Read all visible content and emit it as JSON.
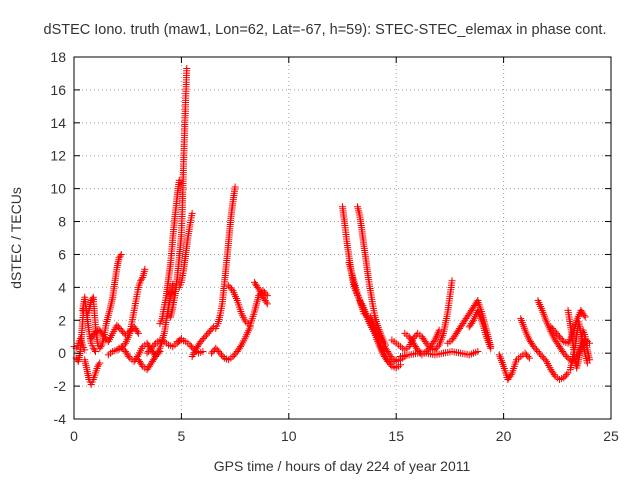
{
  "chart_data": {
    "type": "scatter",
    "title": "dSTEC Iono. truth (maw1, Lon=62, Lat=-67, h=59): STEC-STEC_elemax in phase cont.",
    "xlabel": "GPS time / hours of day 224 of year 2011",
    "ylabel": "dSTEC  / TECUs",
    "xlim": [
      0,
      25
    ],
    "ylim": [
      -4,
      18
    ],
    "x_ticks": [
      0,
      5,
      10,
      15,
      20,
      25
    ],
    "y_ticks": [
      -4,
      -2,
      0,
      2,
      4,
      6,
      8,
      10,
      12,
      14,
      16,
      18
    ],
    "grid": true,
    "marker": "plus",
    "color": "#ff0000",
    "tracks": [
      {
        "x": [
          0.0,
          0.1,
          0.2,
          0.3,
          0.4,
          0.5
        ],
        "y": [
          0.4,
          0.3,
          0.6,
          0.9,
          0.5,
          0.2
        ]
      },
      {
        "x": [
          0.1,
          0.2,
          0.3,
          0.35,
          0.4,
          0.45
        ],
        "y": [
          -0.3,
          -0.5,
          0.1,
          1.0,
          1.9,
          2.7
        ]
      },
      {
        "x": [
          0.4,
          0.5,
          0.6,
          0.7,
          0.8,
          0.9,
          1.0
        ],
        "y": [
          2.6,
          3.4,
          2.3,
          1.3,
          0.6,
          0.3,
          0.1
        ]
      },
      {
        "x": [
          0.5,
          0.6,
          0.7,
          0.8,
          0.9,
          1.0,
          1.1,
          1.2
        ],
        "y": [
          -0.4,
          -1.0,
          -1.6,
          -1.9,
          -1.6,
          -1.2,
          -0.8,
          -0.6
        ]
      },
      {
        "x": [
          0.6,
          0.7,
          0.8,
          0.9,
          1.0,
          1.1,
          1.2,
          1.3,
          1.4,
          1.5,
          1.6,
          1.7,
          1.8,
          1.9,
          2.0,
          2.1,
          2.2
        ],
        "y": [
          2.3,
          2.6,
          3.2,
          3.4,
          1.6,
          0.6,
          0.3,
          0.5,
          1.0,
          1.8,
          2.3,
          2.8,
          3.4,
          4.3,
          5.2,
          5.8,
          6.0
        ]
      },
      {
        "x": [
          0.8,
          1.0,
          1.2,
          1.4,
          1.6,
          1.8,
          2.0,
          2.2,
          2.4,
          2.6,
          2.8,
          3.0
        ],
        "y": [
          0.9,
          1.3,
          1.4,
          1.0,
          0.7,
          1.2,
          1.7,
          1.4,
          1.1,
          1.3,
          1.6,
          1.2
        ]
      },
      {
        "x": [
          1.6,
          1.8,
          2.0,
          2.2,
          2.4,
          2.6,
          2.7,
          2.8,
          2.9,
          3.0,
          3.1,
          3.2,
          3.3
        ],
        "y": [
          -0.1,
          0.1,
          0.2,
          0.3,
          0.6,
          1.2,
          1.9,
          2.6,
          3.3,
          4.0,
          4.4,
          4.6,
          5.1
        ]
      },
      {
        "x": [
          2.0,
          2.2,
          2.4,
          2.6,
          2.8,
          3.0,
          3.2,
          3.4,
          3.6,
          3.8,
          4.0
        ],
        "y": [
          0.2,
          0.4,
          0.1,
          -0.3,
          -0.5,
          -0.1,
          0.4,
          0.6,
          0.2,
          -0.2,
          0.1
        ]
      },
      {
        "x": [
          3.0,
          3.2,
          3.4,
          3.6,
          3.8,
          4.0,
          4.2,
          4.4,
          4.6
        ],
        "y": [
          -0.4,
          -0.8,
          -1.0,
          -0.6,
          -0.2,
          0.3,
          1.2,
          2.8,
          4.2
        ]
      },
      {
        "x": [
          3.4,
          3.6,
          3.8,
          4.0,
          4.2,
          4.4,
          4.6,
          4.8,
          5.0
        ],
        "y": [
          0.0,
          0.3,
          0.6,
          0.8,
          0.7,
          0.5,
          0.4,
          0.6,
          0.9
        ]
      },
      {
        "x": [
          4.0,
          4.1,
          4.2,
          4.3,
          4.4,
          4.5,
          4.55,
          4.6,
          4.7,
          4.8,
          4.9
        ],
        "y": [
          1.8,
          2.1,
          2.8,
          3.5,
          4.5,
          5.5,
          6.2,
          7.0,
          8.3,
          9.5,
          10.5
        ]
      },
      {
        "x": [
          4.5,
          4.6,
          4.7,
          4.8,
          4.9,
          5.0,
          5.05,
          5.1,
          5.15,
          5.2,
          5.25
        ],
        "y": [
          2.2,
          2.8,
          3.5,
          4.5,
          5.8,
          7.2,
          9.0,
          11.5,
          13.5,
          15.5,
          17.3
        ]
      },
      {
        "x": [
          4.9,
          5.0,
          5.1,
          5.2,
          5.3,
          5.4,
          5.5
        ],
        "y": [
          4.0,
          4.3,
          5.0,
          6.0,
          7.0,
          7.8,
          8.5
        ]
      },
      {
        "x": [
          4.8,
          5.0,
          5.2,
          5.4,
          5.6,
          5.8,
          6.0
        ],
        "y": [
          0.7,
          0.8,
          0.7,
          0.5,
          0.2,
          0.0,
          0.1
        ]
      },
      {
        "x": [
          5.5,
          5.7,
          5.9,
          6.1,
          6.3,
          6.5
        ],
        "y": [
          -0.2,
          0.3,
          0.7,
          1.0,
          1.3,
          1.6
        ]
      },
      {
        "x": [
          6.6,
          6.7,
          6.8,
          6.9,
          7.0,
          7.1,
          7.2,
          7.3,
          7.4,
          7.5
        ],
        "y": [
          1.5,
          1.8,
          2.3,
          3.0,
          4.2,
          5.5,
          6.8,
          8.2,
          9.2,
          10.1
        ]
      },
      {
        "x": [
          6.4,
          6.6,
          6.8,
          7.0,
          7.2,
          7.4,
          7.6,
          7.8,
          8.0,
          8.2
        ],
        "y": [
          0.0,
          0.3,
          0.0,
          -0.3,
          -0.4,
          -0.2,
          0.1,
          0.5,
          1.0,
          1.6
        ]
      },
      {
        "x": [
          7.2,
          7.4,
          7.6,
          7.8,
          8.0,
          8.2,
          8.4,
          8.6,
          8.8,
          9.0
        ],
        "y": [
          4.1,
          3.8,
          3.2,
          2.4,
          1.9,
          1.7,
          2.5,
          3.5,
          3.8,
          3.5
        ]
      },
      {
        "x": [
          8.4,
          8.6,
          8.8,
          9.0
        ],
        "y": [
          4.3,
          3.9,
          3.4,
          3.0
        ]
      },
      {
        "x": [
          12.5,
          12.6,
          12.7,
          12.8,
          12.9,
          13.0,
          13.1,
          13.2,
          13.3,
          13.4,
          13.5
        ],
        "y": [
          8.9,
          7.9,
          6.8,
          5.9,
          5.0,
          4.3,
          3.8,
          3.5,
          3.2,
          2.8,
          2.4
        ]
      },
      {
        "x": [
          13.2,
          13.3,
          13.4,
          13.5,
          13.6,
          13.7,
          13.8,
          13.9,
          14.0,
          14.1,
          14.3,
          14.5
        ],
        "y": [
          8.9,
          8.4,
          7.5,
          6.5,
          5.6,
          4.6,
          3.8,
          3.0,
          2.3,
          1.8,
          1.1,
          0.5
        ]
      },
      {
        "x": [
          12.8,
          13.0,
          13.2,
          13.4,
          13.6,
          13.8,
          14.0,
          14.2,
          14.4,
          14.6,
          14.8,
          15.0
        ],
        "y": [
          5.5,
          4.5,
          3.6,
          2.9,
          2.3,
          1.7,
          1.2,
          0.6,
          0.0,
          -0.4,
          -0.6,
          -0.4
        ]
      },
      {
        "x": [
          13.4,
          13.6,
          13.8,
          14.0,
          14.2,
          14.4,
          14.6,
          14.8,
          15.0,
          15.2
        ],
        "y": [
          3.0,
          2.4,
          1.8,
          1.2,
          0.5,
          -0.1,
          -0.5,
          -0.8,
          -0.9,
          -0.7
        ]
      },
      {
        "x": [
          13.8,
          14.0,
          14.2,
          14.4,
          14.6,
          14.8,
          15.0,
          15.2,
          15.4
        ],
        "y": [
          2.2,
          1.6,
          1.0,
          0.5,
          0.1,
          -0.3,
          -0.5,
          -0.4,
          -0.2
        ]
      },
      {
        "x": [
          14.8,
          15.0,
          15.2,
          15.4,
          15.6,
          15.8,
          16.0,
          16.2,
          16.4,
          16.6,
          16.8,
          17.0,
          17.2,
          17.4,
          17.6
        ],
        "y": [
          0.8,
          0.6,
          0.4,
          0.2,
          0.4,
          0.9,
          1.2,
          1.0,
          0.6,
          0.3,
          0.2,
          0.5,
          1.2,
          2.5,
          4.4
        ]
      },
      {
        "x": [
          15.4,
          15.6,
          15.8,
          16.0,
          16.2,
          16.4,
          16.6,
          16.8,
          17.0
        ],
        "y": [
          1.2,
          1.0,
          0.6,
          0.2,
          -0.1,
          0.1,
          0.4,
          0.8,
          1.4
        ]
      },
      {
        "x": [
          15.2,
          15.6,
          16.0,
          16.4,
          16.8,
          17.2,
          17.6,
          18.0,
          18.4,
          18.8
        ],
        "y": [
          -0.2,
          -0.1,
          0.0,
          0.0,
          -0.1,
          0.0,
          0.1,
          0.0,
          -0.1,
          0.1
        ]
      },
      {
        "x": [
          17.4,
          17.6,
          17.8,
          18.0,
          18.2,
          18.4,
          18.6,
          18.8,
          19.0,
          19.2,
          19.4
        ],
        "y": [
          0.6,
          0.8,
          1.2,
          1.6,
          2.0,
          2.4,
          2.8,
          3.2,
          2.4,
          1.4,
          0.4
        ]
      },
      {
        "x": [
          18.4,
          18.6,
          18.8,
          19.0,
          19.2,
          19.4
        ],
        "y": [
          1.6,
          2.0,
          2.6,
          1.9,
          1.0,
          0.3
        ]
      },
      {
        "x": [
          19.8,
          20.0,
          20.2,
          20.4,
          20.6,
          20.8,
          21.0,
          21.2
        ],
        "y": [
          -0.1,
          -0.8,
          -1.6,
          -1.2,
          -0.4,
          -0.2,
          0.0,
          -0.3
        ]
      },
      {
        "x": [
          20.8,
          21.0,
          21.2,
          21.4,
          21.6,
          21.8,
          22.0,
          22.2,
          22.4,
          22.6,
          22.8,
          23.0
        ],
        "y": [
          2.1,
          1.4,
          0.8,
          0.4,
          0.1,
          -0.2,
          -0.5,
          -1.0,
          -1.4,
          -1.6,
          -1.5,
          -1.2
        ]
      },
      {
        "x": [
          21.6,
          21.8,
          22.0,
          22.2,
          22.4,
          22.6,
          22.8,
          23.0,
          23.2,
          23.4,
          23.6,
          23.8,
          24.0
        ],
        "y": [
          3.2,
          2.6,
          1.9,
          1.3,
          0.8,
          0.4,
          0.0,
          -0.3,
          -0.5,
          -0.2,
          0.3,
          0.8,
          0.6
        ]
      },
      {
        "x": [
          22.2,
          22.4,
          22.6,
          22.8,
          23.0,
          23.2,
          23.4,
          23.6,
          23.8
        ],
        "y": [
          1.6,
          1.3,
          1.0,
          0.7,
          0.6,
          1.1,
          2.0,
          2.6,
          2.2
        ]
      },
      {
        "x": [
          23.0,
          23.1,
          23.2,
          23.3,
          23.4,
          23.5,
          23.6,
          23.7,
          23.8,
          23.9,
          24.0
        ],
        "y": [
          2.6,
          1.8,
          0.9,
          -0.2,
          -0.9,
          -0.4,
          0.6,
          1.4,
          1.0,
          0.2,
          -0.4
        ]
      },
      {
        "x": [
          23.1,
          23.3,
          23.5,
          23.7,
          23.9
        ],
        "y": [
          -1.0,
          0.2,
          1.9,
          0.5,
          -0.6
        ]
      }
    ]
  }
}
